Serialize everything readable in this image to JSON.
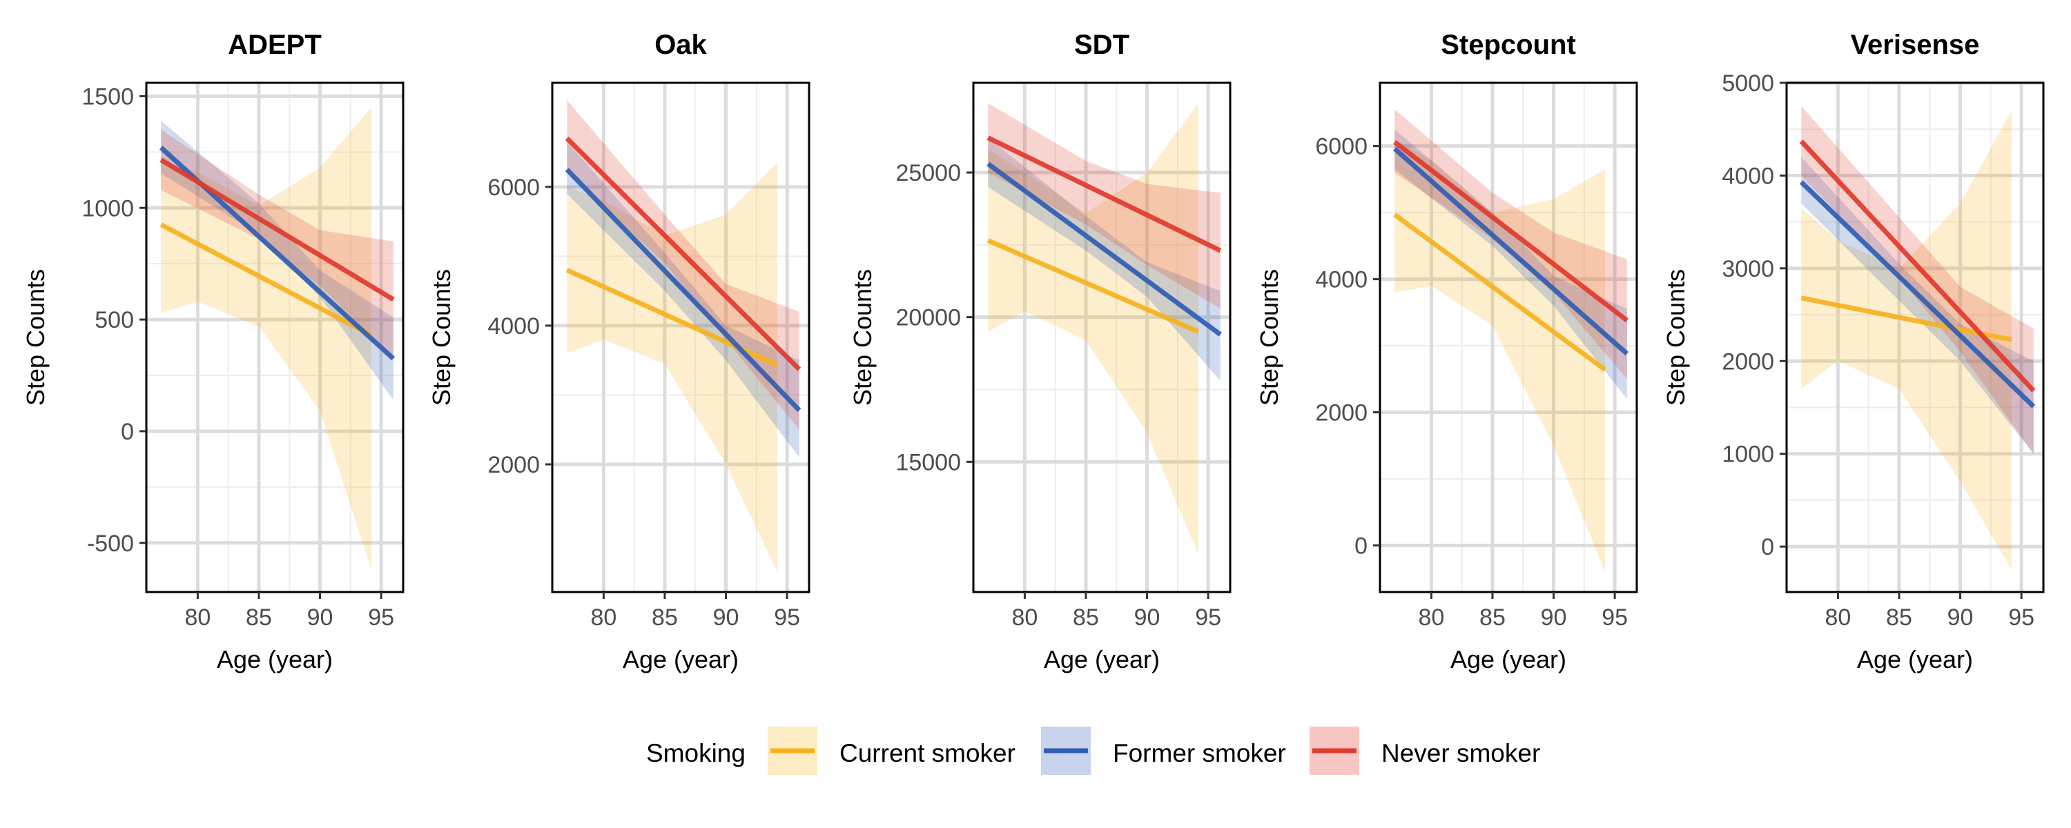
{
  "legend": {
    "title": "Smoking",
    "items": [
      {
        "label": "Current smoker",
        "color": "#F6B21E",
        "ribbon": "#FDEBC3"
      },
      {
        "label": "Former smoker",
        "color": "#2F5DB3",
        "ribbon": "#C8D3EE"
      },
      {
        "label": "Never smoker",
        "color": "#E03A2E",
        "ribbon": "#F8C6C2"
      }
    ]
  },
  "chart_data": [
    {
      "type": "line",
      "title": "ADEPT",
      "xlabel": "Age (year)",
      "ylabel": "Step Counts",
      "xlim": [
        75.8,
        96.8
      ],
      "ylim": [
        -720,
        1560
      ],
      "xticks": [
        80,
        85,
        90,
        95
      ],
      "yticks": [
        -500,
        0,
        500,
        1000,
        1500
      ],
      "ytick_labels": [
        "-500",
        "0",
        "500",
        "1000",
        "1500"
      ],
      "series": [
        {
          "name": "Current smoker",
          "x": [
            77,
            94.2
          ],
          "y": [
            925,
            430
          ],
          "lower": [
            [
              77,
              530
            ],
            [
              80,
              580
            ],
            [
              85,
              470
            ],
            [
              90,
              90
            ],
            [
              94.2,
              -620
            ]
          ],
          "upper": [
            [
              77,
              1210
            ],
            [
              80,
              1160
            ],
            [
              85,
              1010
            ],
            [
              90,
              1180
            ],
            [
              94.2,
              1450
            ]
          ]
        },
        {
          "name": "Former smoker",
          "x": [
            77,
            96
          ],
          "y": [
            1270,
            325
          ],
          "lower": [
            [
              77,
              1155
            ],
            [
              85,
              880
            ],
            [
              90,
              600
            ],
            [
              96,
              140
            ]
          ],
          "upper": [
            [
              77,
              1390
            ],
            [
              85,
              1020
            ],
            [
              90,
              720
            ],
            [
              96,
              510
            ]
          ]
        },
        {
          "name": "Never smoker",
          "x": [
            77,
            96
          ],
          "y": [
            1215,
            590
          ],
          "lower": [
            [
              77,
              1080
            ],
            [
              85,
              860
            ],
            [
              90,
              650
            ],
            [
              96,
              330
            ]
          ],
          "upper": [
            [
              77,
              1350
            ],
            [
              85,
              1060
            ],
            [
              90,
              900
            ],
            [
              96,
              850
            ]
          ]
        }
      ]
    },
    {
      "type": "line",
      "title": "Oak",
      "xlabel": "Age (year)",
      "ylabel": "Step Counts",
      "xlim": [
        75.8,
        96.8
      ],
      "ylim": [
        160,
        7500
      ],
      "xticks": [
        80,
        85,
        90,
        95
      ],
      "yticks": [
        2000,
        4000,
        6000
      ],
      "ytick_labels": [
        "2000",
        "4000",
        "6000"
      ],
      "series": [
        {
          "name": "Current smoker",
          "x": [
            77,
            94.2
          ],
          "y": [
            4800,
            3430
          ],
          "lower": [
            [
              77,
              3600
            ],
            [
              80,
              3800
            ],
            [
              85,
              3450
            ],
            [
              90,
              2000
            ],
            [
              94.2,
              450
            ]
          ],
          "upper": [
            [
              77,
              6000
            ],
            [
              80,
              5800
            ],
            [
              85,
              5300
            ],
            [
              90,
              5600
            ],
            [
              94.2,
              6350
            ]
          ]
        },
        {
          "name": "Former smoker",
          "x": [
            77,
            96
          ],
          "y": [
            6250,
            2780
          ],
          "lower": [
            [
              77,
              5900
            ],
            [
              85,
              4500
            ],
            [
              90,
              3500
            ],
            [
              96,
              2100
            ]
          ],
          "upper": [
            [
              77,
              6650
            ],
            [
              85,
              5050
            ],
            [
              90,
              4000
            ],
            [
              96,
              3500
            ]
          ]
        },
        {
          "name": "Never smoker",
          "x": [
            77,
            96
          ],
          "y": [
            6700,
            3370
          ],
          "lower": [
            [
              77,
              6200
            ],
            [
              85,
              4900
            ],
            [
              90,
              3800
            ],
            [
              96,
              2500
            ]
          ],
          "upper": [
            [
              77,
              7250
            ],
            [
              85,
              5600
            ],
            [
              90,
              4600
            ],
            [
              96,
              4200
            ]
          ]
        }
      ]
    },
    {
      "type": "line",
      "title": "SDT",
      "xlabel": "Age (year)",
      "ylabel": "Step Counts",
      "xlim": [
        75.8,
        96.8
      ],
      "ylim": [
        10500,
        28100
      ],
      "xticks": [
        80,
        85,
        90,
        95
      ],
      "yticks": [
        15000,
        20000,
        25000
      ],
      "ytick_labels": [
        "15000",
        "20000",
        "25000"
      ],
      "series": [
        {
          "name": "Current smoker",
          "x": [
            77,
            94.2
          ],
          "y": [
            22650,
            19500
          ],
          "lower": [
            [
              77,
              19500
            ],
            [
              80,
              20200
            ],
            [
              85,
              19200
            ],
            [
              90,
              16000
            ],
            [
              94.2,
              11800
            ]
          ],
          "upper": [
            [
              77,
              25800
            ],
            [
              80,
              25000
            ],
            [
              85,
              23600
            ],
            [
              90,
              25000
            ],
            [
              94.2,
              27400
            ]
          ]
        },
        {
          "name": "Former smoker",
          "x": [
            77,
            96
          ],
          "y": [
            25300,
            19400
          ],
          "lower": [
            [
              77,
              24500
            ],
            [
              85,
              22300
            ],
            [
              90,
              20700
            ],
            [
              96,
              17800
            ]
          ],
          "upper": [
            [
              77,
              26200
            ],
            [
              85,
              23500
            ],
            [
              90,
              21900
            ],
            [
              96,
              20900
            ]
          ]
        },
        {
          "name": "Never smoker",
          "x": [
            77,
            96
          ],
          "y": [
            26200,
            22300
          ],
          "lower": [
            [
              77,
              25000
            ],
            [
              85,
              23200
            ],
            [
              90,
              21800
            ],
            [
              96,
              20300
            ]
          ],
          "upper": [
            [
              77,
              27400
            ],
            [
              85,
              25400
            ],
            [
              90,
              24600
            ],
            [
              96,
              24300
            ]
          ]
        }
      ]
    },
    {
      "type": "line",
      "title": "Stepcount",
      "xlabel": "Age (year)",
      "ylabel": "Step Counts",
      "xlim": [
        75.8,
        96.8
      ],
      "ylim": [
        -700,
        6950
      ],
      "xticks": [
        80,
        85,
        90,
        95
      ],
      "yticks": [
        0,
        2000,
        4000,
        6000
      ],
      "ytick_labels": [
        "0",
        "2000",
        "4000",
        "6000"
      ],
      "series": [
        {
          "name": "Current smoker",
          "x": [
            77,
            94.2
          ],
          "y": [
            4970,
            2640
          ],
          "lower": [
            [
              77,
              3800
            ],
            [
              80,
              3900
            ],
            [
              85,
              3300
            ],
            [
              90,
              1500
            ],
            [
              94.2,
              -400
            ]
          ],
          "upper": [
            [
              77,
              6100
            ],
            [
              80,
              5800
            ],
            [
              85,
              5000
            ],
            [
              90,
              5200
            ],
            [
              94.2,
              5650
            ]
          ]
        },
        {
          "name": "Former smoker",
          "x": [
            77,
            96
          ],
          "y": [
            5960,
            2880
          ],
          "lower": [
            [
              77,
              5650
            ],
            [
              85,
              4500
            ],
            [
              90,
              3600
            ],
            [
              96,
              2200
            ]
          ],
          "upper": [
            [
              77,
              6250
            ],
            [
              85,
              5000
            ],
            [
              90,
              4050
            ],
            [
              96,
              3550
            ]
          ]
        },
        {
          "name": "Never smoker",
          "x": [
            77,
            96
          ],
          "y": [
            6060,
            3380
          ],
          "lower": [
            [
              77,
              5600
            ],
            [
              85,
              4600
            ],
            [
              90,
              3800
            ],
            [
              96,
              2500
            ]
          ],
          "upper": [
            [
              77,
              6550
            ],
            [
              85,
              5300
            ],
            [
              90,
              4700
            ],
            [
              96,
              4300
            ]
          ]
        }
      ]
    },
    {
      "type": "line",
      "title": "Verisense",
      "xlabel": "Age (year)",
      "ylabel": "Step Counts",
      "xlim": [
        75.8,
        96.8
      ],
      "ylim": [
        -490,
        5000
      ],
      "xticks": [
        80,
        85,
        90,
        95
      ],
      "yticks": [
        0,
        1000,
        2000,
        3000,
        4000,
        5000
      ],
      "ytick_labels": [
        "0",
        "1000",
        "2000",
        "3000",
        "4000",
        "5000"
      ],
      "series": [
        {
          "name": "Current smoker",
          "x": [
            77,
            94.2
          ],
          "y": [
            2680,
            2230
          ],
          "lower": [
            [
              77,
              1700
            ],
            [
              80,
              2000
            ],
            [
              85,
              1700
            ],
            [
              90,
              700
            ],
            [
              94.2,
              -250
            ]
          ],
          "upper": [
            [
              77,
              3650
            ],
            [
              80,
              3300
            ],
            [
              85,
              3000
            ],
            [
              90,
              3700
            ],
            [
              94.2,
              4700
            ]
          ]
        },
        {
          "name": "Former smoker",
          "x": [
            77,
            96
          ],
          "y": [
            3930,
            1510
          ],
          "lower": [
            [
              77,
              3700
            ],
            [
              85,
              2650
            ],
            [
              90,
              2000
            ],
            [
              96,
              1000
            ]
          ],
          "upper": [
            [
              77,
              4200
            ],
            [
              85,
              3050
            ],
            [
              90,
              2400
            ],
            [
              96,
              2000
            ]
          ]
        },
        {
          "name": "Never smoker",
          "x": [
            77,
            96
          ],
          "y": [
            4370,
            1680
          ],
          "lower": [
            [
              77,
              4000
            ],
            [
              85,
              2900
            ],
            [
              90,
              2100
            ],
            [
              96,
              1000
            ]
          ],
          "upper": [
            [
              77,
              4750
            ],
            [
              85,
              3550
            ],
            [
              90,
              2800
            ],
            [
              96,
              2350
            ]
          ]
        }
      ]
    }
  ]
}
